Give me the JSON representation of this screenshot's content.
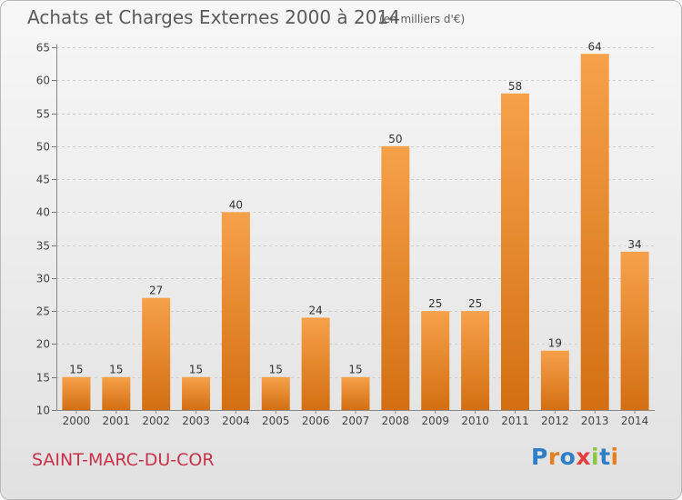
{
  "header": {
    "title": "Achats et Charges Externes 2000 à 2014",
    "subtitle": "(en milliers d'€)"
  },
  "footer": {
    "place": "SAINT-MARC-DU-COR",
    "brand": "Proxiti"
  },
  "colors": {
    "bar_light": "#f6a14a",
    "bar_dark": "#d36f12",
    "place_text": "#c8324b",
    "brand_letters": [
      "#2f7fc7",
      "#e67e22",
      "#2f7fc7",
      "#e73c3c",
      "#8dc63f",
      "#2f7fc7",
      "#e67e22"
    ]
  },
  "chart_data": {
    "type": "bar",
    "categories": [
      "2000",
      "2001",
      "2002",
      "2003",
      "2004",
      "2005",
      "2006",
      "2007",
      "2008",
      "2009",
      "2010",
      "2011",
      "2012",
      "2013",
      "2014"
    ],
    "values": [
      15,
      15,
      27,
      15,
      40,
      15,
      24,
      15,
      50,
      25,
      25,
      58,
      19,
      64,
      34
    ],
    "ylim": [
      10,
      65
    ],
    "yticks": [
      10,
      15,
      20,
      25,
      30,
      35,
      40,
      45,
      50,
      55,
      60,
      65
    ],
    "grid": true,
    "legend": "none",
    "xlabel": "",
    "ylabel": ""
  }
}
